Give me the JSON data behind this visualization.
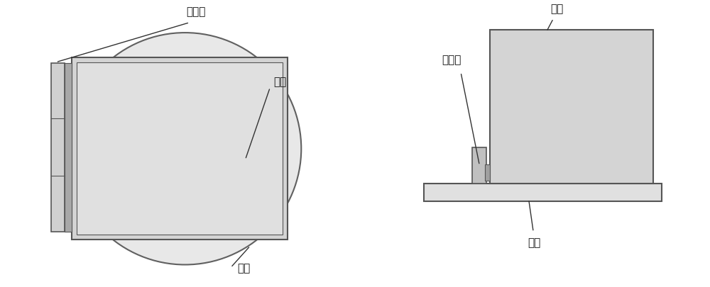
{
  "bg_color": "#ffffff",
  "circle_fill": "#e8e8e8",
  "circle_edge": "#606060",
  "box_fill": "#d4d4d4",
  "box_edge": "#555555",
  "box_inner_fill": "#e0e0e0",
  "plate_fill": "#c8c8c8",
  "plate_edge": "#555555",
  "base_fill": "#e0e0e0",
  "base_edge": "#555555",
  "small_block_fill": "#b8b8b8",
  "small_block_edge": "#555555",
  "line_color": "#333333",
  "text_color": "#111111",
  "font_size": 11,
  "label_tuikao": "推靠面",
  "label_fangxiang": "方筱",
  "label_zhuantai": "转台"
}
